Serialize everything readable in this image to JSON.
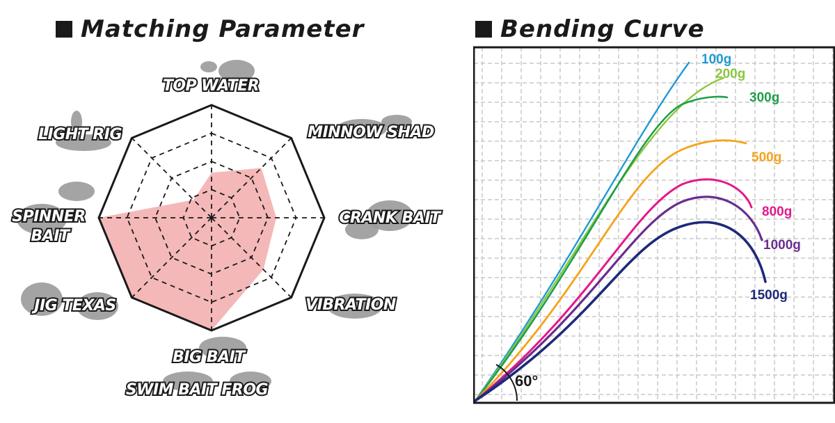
{
  "radar": {
    "title": "Matching Parameter",
    "axis_labels": [
      "TOP WATER",
      "MINNOW SHAD",
      "CRANK BAIT",
      "VIBRATION",
      "BIG BAIT",
      "JIG  TEXAS",
      "SPINNER",
      "LIGHT RIG"
    ],
    "extra_labels": {
      "spinner_line2": "BAIT",
      "big_bait_line2": "SWIM BAIT  FROG"
    },
    "colors": {
      "fill": "#f4b8b8",
      "frame": "#1a1a1a",
      "lure": "#9a9a9a"
    }
  },
  "bending": {
    "title": "Bending Curve",
    "angle_label": "60°",
    "colors": {
      "grid": "#c8c8c8",
      "frame": "#1a1a1a"
    }
  },
  "chart_data": [
    {
      "type": "radar",
      "title": "Matching Parameter",
      "categories": [
        "TOP WATER",
        "MINNOW SHAD",
        "CRANK BAIT",
        "VIBRATION",
        "BIG BAIT / SWIM BAIT FROG",
        "JIG TEXAS",
        "SPINNER BAIT",
        "LIGHT RIG"
      ],
      "scale_max": 4,
      "rings": 4,
      "values": [
        1.6,
        2.5,
        2.3,
        2.6,
        4,
        4,
        4,
        0.9
      ],
      "fill_color": "#f4b8b8"
    },
    {
      "type": "line",
      "title": "Bending Curve",
      "annotation": "60°",
      "grid": true,
      "series": [
        {
          "name": "100g",
          "color": "#1f9ad6"
        },
        {
          "name": "200g",
          "color": "#8cc63f"
        },
        {
          "name": "300g",
          "color": "#1ea04a"
        },
        {
          "name": "500g",
          "color": "#f5a31a"
        },
        {
          "name": "800g",
          "color": "#e5188b"
        },
        {
          "name": "1000g",
          "color": "#6a2d8e"
        },
        {
          "name": "1500g",
          "color": "#1d2a7a"
        }
      ]
    }
  ]
}
